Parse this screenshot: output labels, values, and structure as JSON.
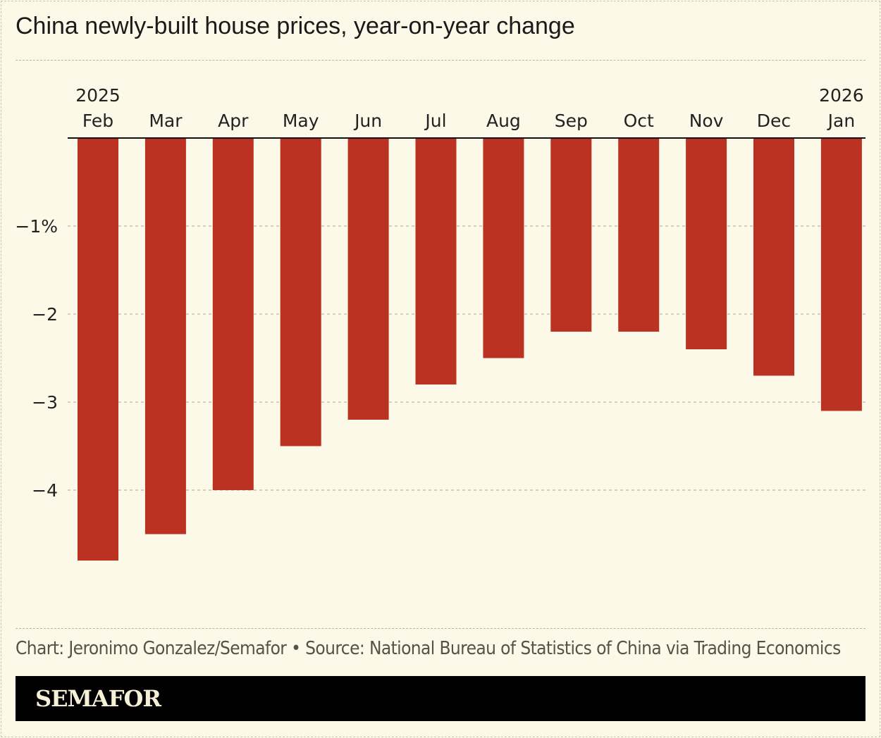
{
  "chart_data": {
    "type": "bar",
    "title": "China newly-built house prices, year-on-year change",
    "categories": [
      "Feb",
      "Mar",
      "Apr",
      "May",
      "Jun",
      "Jul",
      "Aug",
      "Sep",
      "Oct",
      "Nov",
      "Dec",
      "Jan"
    ],
    "year_labels": {
      "0": "2025",
      "11": "2026"
    },
    "values": [
      -4.8,
      -4.5,
      -4.0,
      -3.5,
      -3.2,
      -2.8,
      -2.5,
      -2.2,
      -2.2,
      -2.4,
      -2.7,
      -3.1
    ],
    "ylim": [
      -5.0,
      0
    ],
    "yticks": [
      {
        "value": -1,
        "label": "−1%"
      },
      {
        "value": -2,
        "label": "−2"
      },
      {
        "value": -3,
        "label": "−3"
      },
      {
        "value": -4,
        "label": "−4"
      }
    ],
    "xlabel": "",
    "ylabel": "",
    "grid": true,
    "x_axis_position": "top",
    "bar_color": "#bc3222"
  },
  "footer": {
    "credit": "Chart: Jeronimo Gonzalez/Semafor • Source: National Bureau of Statistics of China via Trading Economics",
    "logo": "SEMAFOR"
  }
}
